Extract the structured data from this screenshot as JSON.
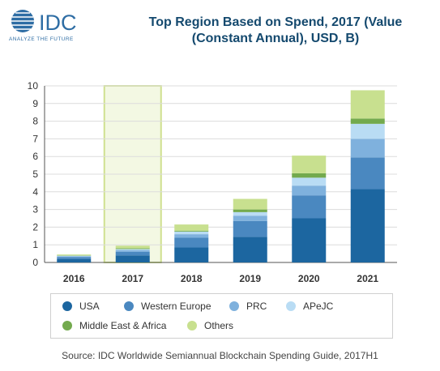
{
  "logo": {
    "text": "IDC",
    "tagline": "ANALYZE THE FUTURE"
  },
  "title": {
    "line1": "Top Region Based on Spend, 2017 (Value",
    "line2": "(Constant Annual), USD, B)"
  },
  "source": "Source: IDC Worldwide Semiannual Blockchain Spending Guide, 2017H1",
  "colors": {
    "USA": "#1c66a0",
    "Western Europe": "#4a88c0",
    "PRC": "#7fb1dd",
    "APeJC": "#b9dcf4",
    "Middle East & Africa": "#73aa4e",
    "Others": "#c8e08f",
    "highlight_fill": "#f3f8e3",
    "highlight_stroke": "#cfe08f",
    "title": "#14496e",
    "logo": "#2e6da4"
  },
  "chart_data": {
    "type": "bar",
    "stacked": true,
    "categories": [
      "2016",
      "2017",
      "2018",
      "2019",
      "2020",
      "2021"
    ],
    "series": [
      {
        "name": "USA",
        "values": [
          0.2,
          0.4,
          0.85,
          1.45,
          2.5,
          4.15
        ]
      },
      {
        "name": "Western Europe",
        "values": [
          0.1,
          0.2,
          0.55,
          0.9,
          1.3,
          1.8
        ]
      },
      {
        "name": "PRC",
        "values": [
          0.05,
          0.1,
          0.2,
          0.3,
          0.55,
          1.05
        ]
      },
      {
        "name": "APeJC",
        "values": [
          0.03,
          0.06,
          0.15,
          0.2,
          0.45,
          0.85
        ]
      },
      {
        "name": "Middle East & Africa",
        "values": [
          0.02,
          0.04,
          0.05,
          0.15,
          0.25,
          0.3
        ]
      },
      {
        "name": "Others",
        "values": [
          0.05,
          0.15,
          0.35,
          0.6,
          1.0,
          1.6
        ]
      }
    ],
    "highlighted_category": "2017",
    "ylim": [
      0,
      10
    ],
    "yticks": [
      0,
      1,
      2,
      3,
      4,
      5,
      6,
      7,
      8,
      9,
      10
    ],
    "grid": true,
    "legend_position": "bottom"
  }
}
